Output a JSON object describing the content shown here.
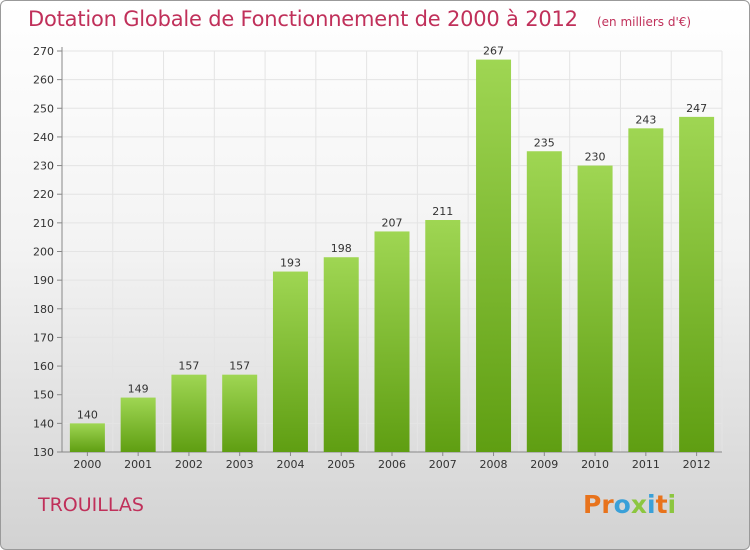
{
  "header": {
    "title": "Dotation Globale de Fonctionnement de 2000 à 2012",
    "subtitle": "(en milliers d'€)"
  },
  "footer": {
    "commune": "TROUILLAS",
    "logo_text": "Proxiti",
    "logo_colors": [
      "#e8731c",
      "#e8731c",
      "#3aa0d8",
      "#8cc63f",
      "#3aa0d8",
      "#e8731c",
      "#8cc63f"
    ]
  },
  "colors": {
    "title": "#c0305a",
    "bar_top": "#9fd653",
    "bar_bottom": "#5f9e12",
    "grid": "#e4e4e4"
  },
  "chart_data": {
    "type": "bar",
    "title": "Dotation Globale de Fonctionnement de 2000 à 2012",
    "subtitle": "(en milliers d'€)",
    "categories": [
      "2000",
      "2001",
      "2002",
      "2003",
      "2004",
      "2005",
      "2006",
      "2007",
      "2008",
      "2009",
      "2010",
      "2011",
      "2012"
    ],
    "values": [
      140,
      149,
      157,
      157,
      193,
      198,
      207,
      211,
      267,
      235,
      230,
      243,
      247
    ],
    "ylim": [
      130,
      270
    ],
    "yticks": [
      130,
      140,
      150,
      160,
      170,
      180,
      190,
      200,
      210,
      220,
      230,
      240,
      250,
      260,
      270
    ],
    "grid": true,
    "xlabel": "",
    "ylabel": ""
  }
}
